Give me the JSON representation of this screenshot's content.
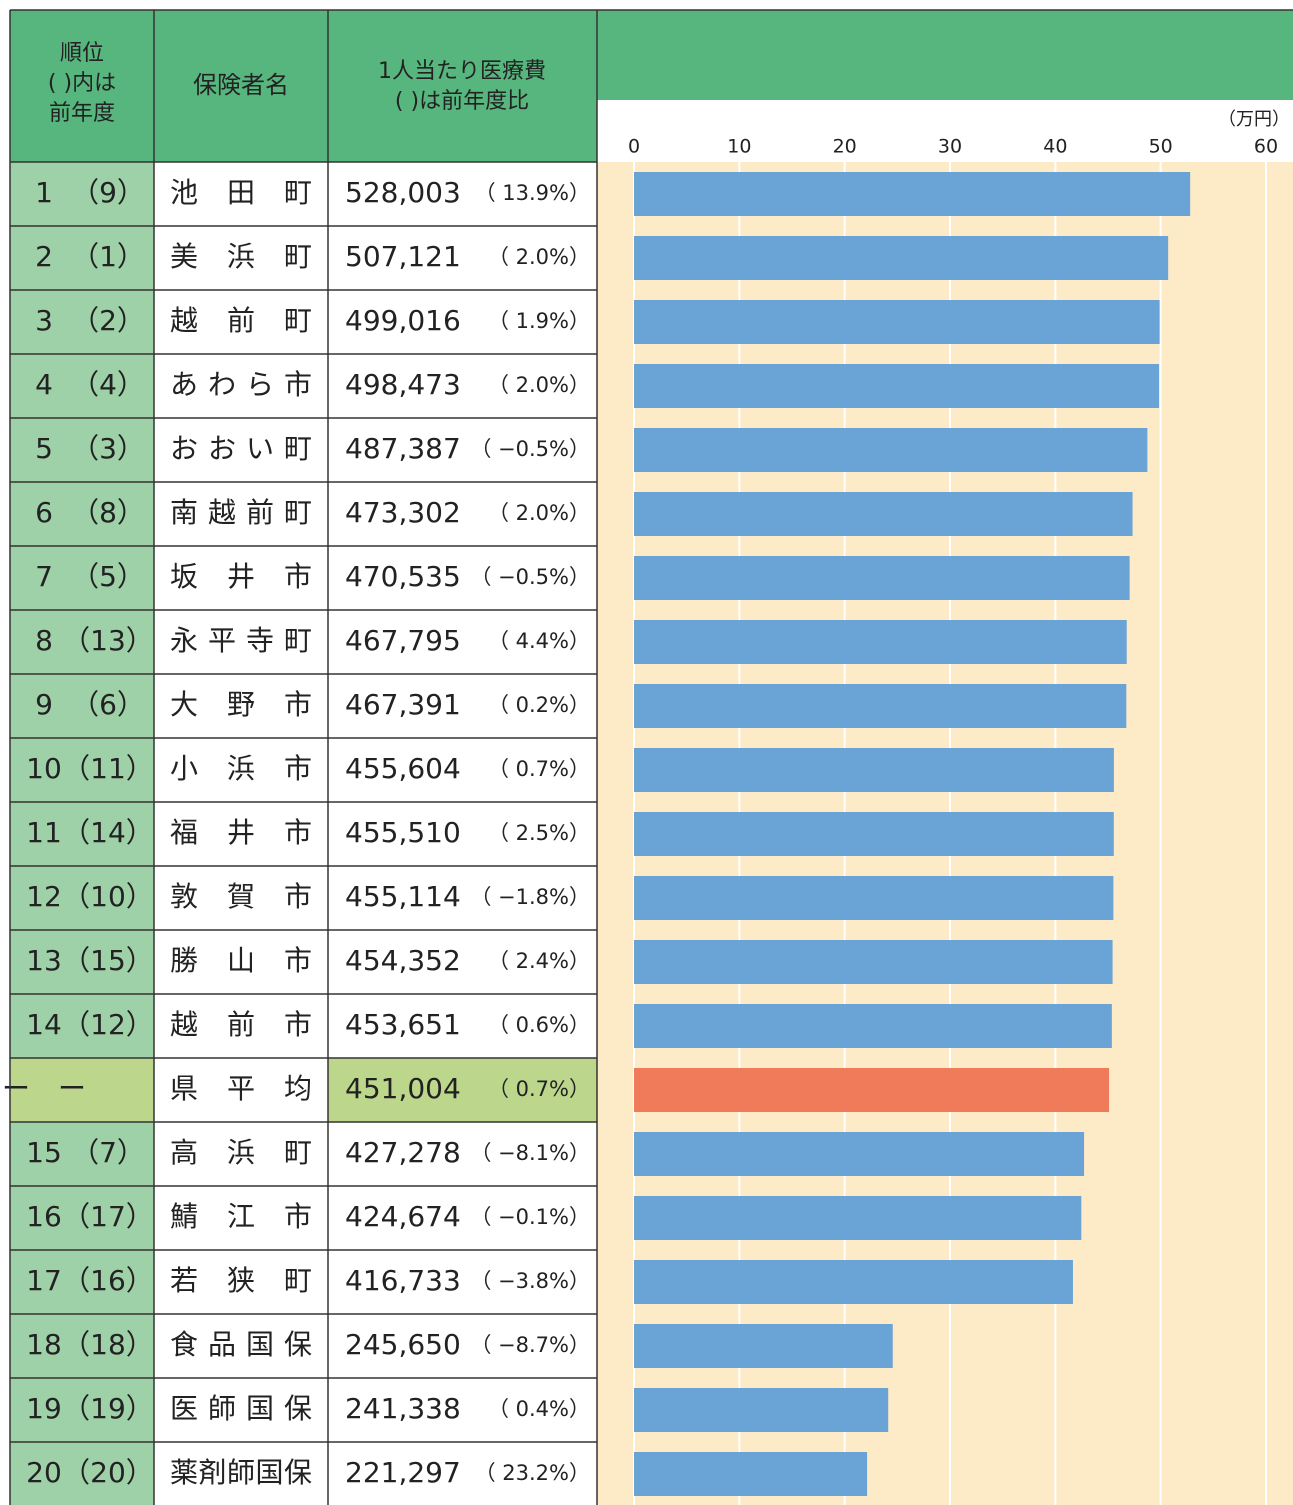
{
  "chart_data": {
    "type": "bar",
    "orientation": "horizontal",
    "headers": {
      "rank": [
        "順位",
        "( )内は",
        "前年度"
      ],
      "name": "保険者名",
      "cost": [
        "1人当たり医療費",
        "( )は前年度比"
      ]
    },
    "x_unit": "（万円）",
    "ranks": [
      "1",
      "2",
      "3",
      "4",
      "5",
      "6",
      "7",
      "8",
      "9",
      "10",
      "11",
      "12",
      "13",
      "14",
      "ー　ー",
      "15",
      "16",
      "17",
      "18",
      "19",
      "20"
    ],
    "prev_ranks": [
      "（9）",
      "（1）",
      "（2）",
      "（4）",
      "（3）",
      "（8）",
      "（5）",
      "（13）",
      "（6）",
      "（11）",
      "（14）",
      "（10）",
      "（15）",
      "（12）",
      "",
      "（7）",
      "（17）",
      "（16）",
      "（18）",
      "（19）",
      "（20）"
    ],
    "categories": [
      "池田町",
      "美浜町",
      "越前町",
      "あわら市",
      "おおい町",
      "南越前町",
      "坂井市",
      "永平寺町",
      "大野市",
      "小浜市",
      "福井市",
      "敦賀市",
      "勝山市",
      "越前市",
      "県平均",
      "高浜町",
      "鯖江市",
      "若狭町",
      "食品国保",
      "医師国保",
      "薬剤師国保"
    ],
    "values": [
      528003,
      507121,
      499016,
      498473,
      487387,
      473302,
      470535,
      467795,
      467391,
      455604,
      455510,
      455114,
      454352,
      453651,
      451004,
      427278,
      424674,
      416733,
      245650,
      241338,
      221297
    ],
    "value_labels": [
      "528,003",
      "507,121",
      "499,016",
      "498,473",
      "487,387",
      "473,302",
      "470,535",
      "467,795",
      "467,391",
      "455,604",
      "455,510",
      "455,114",
      "454,352",
      "453,651",
      "451,004",
      "427,278",
      "424,674",
      "416,733",
      "245,650",
      "241,338",
      "221,297"
    ],
    "changes": [
      "（ 13.9%）",
      "（  2.0%）",
      "（  1.9%）",
      "（  2.0%）",
      "（ −0.5%）",
      "（  2.0%）",
      "（ −0.5%）",
      "（  4.4%）",
      "（  0.2%）",
      "（  0.7%）",
      "（  2.5%）",
      "（ −1.8%）",
      "（  2.4%）",
      "（  0.6%）",
      "（  0.7%）",
      "（ −8.1%）",
      "（ −0.1%）",
      "（ −3.8%）",
      "（ −8.7%）",
      "（  0.4%）",
      "（ 23.2%）"
    ],
    "color": "#6aa3d6",
    "colors": [
      "#6aa3d6",
      "#6aa3d6",
      "#6aa3d6",
      "#6aa3d6",
      "#6aa3d6",
      "#6aa3d6",
      "#6aa3d6",
      "#6aa3d6",
      "#6aa3d6",
      "#6aa3d6",
      "#6aa3d6",
      "#6aa3d6",
      "#6aa3d6",
      "#6aa3d6",
      "#ef7b5a",
      "#6aa3d6",
      "#6aa3d6",
      "#6aa3d6",
      "#6aa3d6",
      "#6aa3d6",
      "#6aa3d6"
    ],
    "xlim": [
      0,
      600000
    ],
    "xticks": [
      0,
      {
        "value": 100000,
        "label": "10"
      },
      {
        "value": 200000,
        "label": "20"
      },
      {
        "value": 300000,
        "label": "30"
      },
      {
        "value": 400000,
        "label": "40"
      },
      {
        "value": 500000,
        "label": "50"
      },
      {
        "value": 600000,
        "label": "60"
      }
    ],
    "grid": true
  }
}
